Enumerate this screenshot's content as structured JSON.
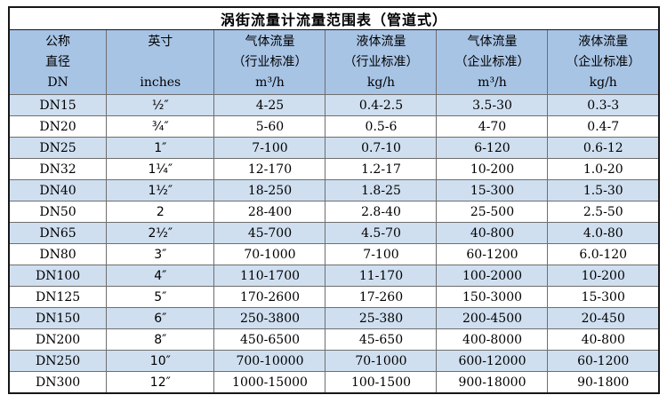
{
  "title": "涡街流量计流量范围表（管道式）",
  "colors": {
    "header_bg": "#a8c4e5",
    "alt_row_bg": "#cfdff0",
    "row_bg": "#ffffff",
    "outer_border": "#161616",
    "inner_border": "#6e6e6e",
    "text": "#000000"
  },
  "chart_data": {
    "type": "table",
    "title": "涡街流量计流量范围表（管道式）",
    "columns": [
      {
        "key": "dn",
        "lines": [
          "公称",
          "直径",
          "DN"
        ]
      },
      {
        "key": "inches",
        "lines": [
          "英寸",
          "",
          "inches"
        ]
      },
      {
        "key": "gas-industry",
        "lines": [
          "气体流量",
          "（行业标准）",
          "m³/h"
        ]
      },
      {
        "key": "liquid-industry",
        "lines": [
          "液体流量",
          "（行业标准）",
          "kg/h"
        ]
      },
      {
        "key": "gas-enterprise",
        "lines": [
          "气体流量",
          "（企业标准）",
          "m³/h"
        ]
      },
      {
        "key": "liquid-enterprise",
        "lines": [
          "液体流量",
          "（企业标准）",
          "kg/h"
        ]
      }
    ],
    "rows": [
      [
        "DN15",
        "½″",
        "4-25",
        "0.4-2.5",
        "3.5-30",
        "0.3-3"
      ],
      [
        "DN20",
        "¾″",
        "5-60",
        "0.5-6",
        "4-70",
        "0.4-7"
      ],
      [
        "DN25",
        "1″",
        "7-100",
        "0.7-10",
        "6-120",
        "0.6-12"
      ],
      [
        "DN32",
        "1¼″",
        "12-170",
        "1.2-17",
        "10-200",
        "1.0-20"
      ],
      [
        "DN40",
        "1½″",
        "18-250",
        "1.8-25",
        "15-300",
        "1.5-30"
      ],
      [
        "DN50",
        "2",
        "28-400",
        "2.8-40",
        "25-500",
        "2.5-50"
      ],
      [
        "DN65",
        "2½″",
        "45-700",
        "4.5-70",
        "40-800",
        "4.0-80"
      ],
      [
        "DN80",
        "3″",
        "70-1000",
        "7-100",
        "60-1200",
        "6.0-120"
      ],
      [
        "DN100",
        "4″",
        "110-1700",
        "11-170",
        "100-2000",
        "10-200"
      ],
      [
        "DN125",
        "5″",
        "170-2600",
        "17-260",
        "150-3000",
        "15-300"
      ],
      [
        "DN150",
        "6″",
        "250-3800",
        "25-380",
        "200-4500",
        "20-450"
      ],
      [
        "DN200",
        "8″",
        "450-6500",
        "45-650",
        "400-8000",
        "40-800"
      ],
      [
        "DN250",
        "10″",
        "700-10000",
        "70-1000",
        "600-12000",
        "60-1200"
      ],
      [
        "DN300",
        "12″",
        "1000-15000",
        "100-1500",
        "900-18000",
        "90-1800"
      ]
    ]
  }
}
